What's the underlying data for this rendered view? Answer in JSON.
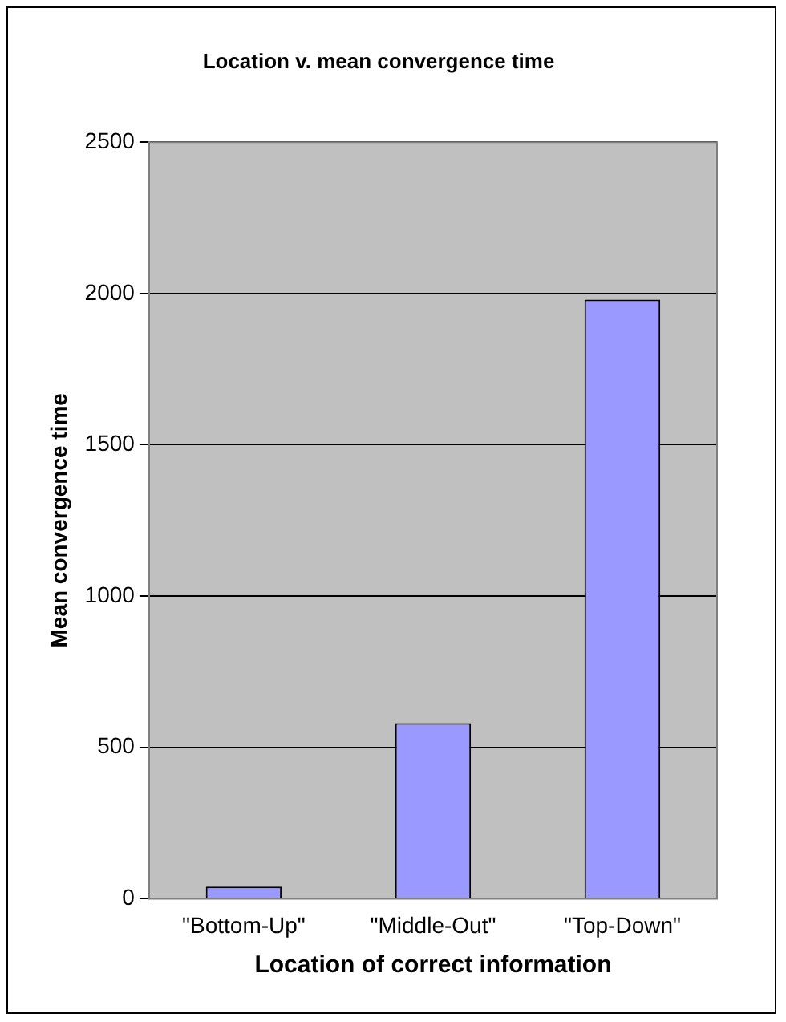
{
  "chart_data": {
    "type": "bar",
    "title": "Location v. mean convergence time",
    "xlabel": "Location of correct information",
    "ylabel": "Mean convergence time",
    "categories": [
      "\"Bottom-Up\"",
      "\"Middle-Out\"",
      "\"Top-Down\""
    ],
    "values": [
      40,
      580,
      1980
    ],
    "color": "#9999ff",
    "ylim": [
      0,
      2500
    ],
    "yticks": [
      0,
      500,
      1000,
      1500,
      2000,
      2500
    ],
    "grid": "y",
    "legend": false
  }
}
